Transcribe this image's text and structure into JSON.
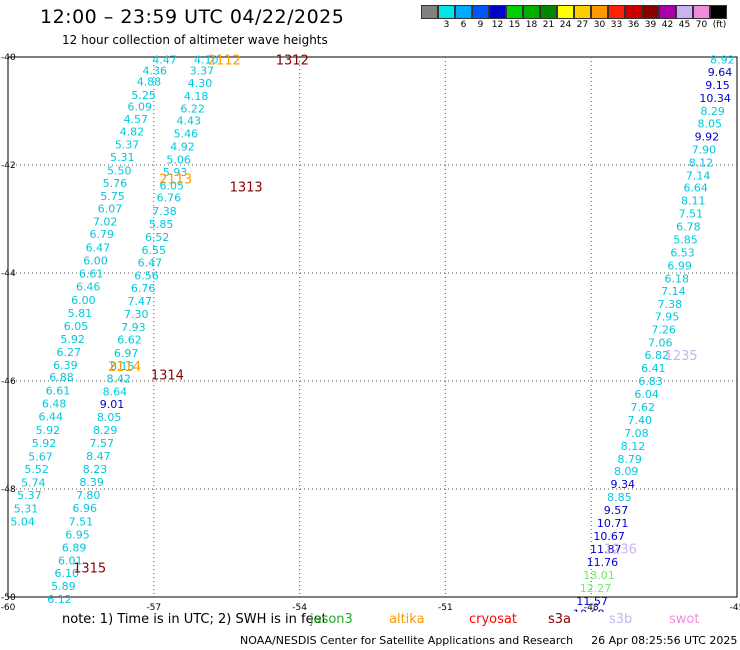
{
  "header": {
    "title": "12:00 – 23:59 UTC 04/22/2025",
    "subtitle": "12 hour collection of altimeter wave heights"
  },
  "legend": {
    "unit": "(ft)",
    "bins": [
      {
        "color": "#808080",
        "label": ""
      },
      {
        "color": "#00e6e6",
        "label": "3"
      },
      {
        "color": "#00aaff",
        "label": "6"
      },
      {
        "color": "#0055ff",
        "label": "9"
      },
      {
        "color": "#0000cc",
        "label": "12"
      },
      {
        "color": "#00d000",
        "label": "15"
      },
      {
        "color": "#00b000",
        "label": "18"
      },
      {
        "color": "#008800",
        "label": "21"
      },
      {
        "color": "#ffff00",
        "label": "24"
      },
      {
        "color": "#ffcc00",
        "label": "27"
      },
      {
        "color": "#ff9900",
        "label": "30"
      },
      {
        "color": "#ff2200",
        "label": "33"
      },
      {
        "color": "#cc0000",
        "label": "36"
      },
      {
        "color": "#880000",
        "label": "39"
      },
      {
        "color": "#aa00aa",
        "label": "42"
      },
      {
        "color": "#c8b4f0",
        "label": "45"
      },
      {
        "color": "#f08cdc",
        "label": "70"
      },
      {
        "color": "#000000",
        "label": ""
      }
    ]
  },
  "chart_data": {
    "type": "scatter",
    "xlabel": "",
    "ylabel": "",
    "xlim": [
      -60,
      -45
    ],
    "ylim": [
      -50,
      -40
    ],
    "x_ticks": [
      {
        "value": -60,
        "label": "-60"
      },
      {
        "value": -57,
        "label": "-57"
      },
      {
        "value": -54,
        "label": "-54"
      },
      {
        "value": -51,
        "label": "-51"
      },
      {
        "value": -48,
        "label": "-48"
      },
      {
        "value": -45,
        "label": "-45"
      }
    ],
    "y_ticks": [
      {
        "value": -40,
        "label": "-40"
      },
      {
        "value": -42,
        "label": "-42"
      },
      {
        "value": -44,
        "label": "-44"
      },
      {
        "value": -46,
        "label": "-46"
      },
      {
        "value": -48,
        "label": "-48"
      },
      {
        "value": -50,
        "label": "-50"
      }
    ],
    "grid": true,
    "series": [
      {
        "colors": {
          "cyan": "#00c8dc",
          "blue": "#0000cc",
          "green": "#22cc22",
          "lime": "#66ee66"
        },
        "points": [
          {
            "x": -56.78,
            "y": -40.05,
            "v": "4.47",
            "c": "cyan"
          },
          {
            "x": -56.98,
            "y": -40.25,
            "v": "4.36",
            "c": "cyan"
          },
          {
            "x": -57.1,
            "y": -40.45,
            "v": "4.88",
            "c": "cyan"
          },
          {
            "x": -57.21,
            "y": -40.7,
            "v": "5.25",
            "c": "cyan"
          },
          {
            "x": -57.29,
            "y": -40.92,
            "v": "6.09",
            "c": "cyan"
          },
          {
            "x": -57.37,
            "y": -41.15,
            "v": "4.57",
            "c": "cyan"
          },
          {
            "x": -57.45,
            "y": -41.38,
            "v": "4.82",
            "c": "cyan"
          },
          {
            "x": -57.55,
            "y": -41.62,
            "v": "5.37",
            "c": "cyan"
          },
          {
            "x": -57.65,
            "y": -41.85,
            "v": "5.31",
            "c": "cyan"
          },
          {
            "x": -57.71,
            "y": -42.1,
            "v": "5.50",
            "c": "cyan"
          },
          {
            "x": -57.8,
            "y": -42.33,
            "v": "5.76",
            "c": "cyan"
          },
          {
            "x": -57.85,
            "y": -42.57,
            "v": "5.75",
            "c": "cyan"
          },
          {
            "x": -57.9,
            "y": -42.81,
            "v": "6.07",
            "c": "cyan"
          },
          {
            "x": -58.0,
            "y": -43.05,
            "v": "7.02",
            "c": "cyan"
          },
          {
            "x": -58.07,
            "y": -43.28,
            "v": "6.79",
            "c": "cyan"
          },
          {
            "x": -58.15,
            "y": -43.53,
            "v": "6.47",
            "c": "cyan"
          },
          {
            "x": -58.2,
            "y": -43.77,
            "v": "6.00",
            "c": "cyan"
          },
          {
            "x": -58.29,
            "y": -44.01,
            "v": "6.61",
            "c": "cyan"
          },
          {
            "x": -58.35,
            "y": -44.25,
            "v": "6.46",
            "c": "cyan"
          },
          {
            "x": -58.45,
            "y": -44.5,
            "v": "6.00",
            "c": "cyan"
          },
          {
            "x": -58.52,
            "y": -44.74,
            "v": "5.81",
            "c": "cyan"
          },
          {
            "x": -58.6,
            "y": -44.98,
            "v": "6.05",
            "c": "cyan"
          },
          {
            "x": -58.67,
            "y": -45.22,
            "v": "5.92",
            "c": "cyan"
          },
          {
            "x": -58.75,
            "y": -45.46,
            "v": "6.27",
            "c": "cyan"
          },
          {
            "x": -58.82,
            "y": -45.7,
            "v": "6.39",
            "c": "cyan"
          },
          {
            "x": -58.9,
            "y": -45.93,
            "v": "6.88",
            "c": "cyan"
          },
          {
            "x": -58.97,
            "y": -46.18,
            "v": "6.61",
            "c": "cyan"
          },
          {
            "x": -59.05,
            "y": -46.42,
            "v": "6.48",
            "c": "cyan"
          },
          {
            "x": -59.12,
            "y": -46.66,
            "v": "6.44",
            "c": "cyan"
          },
          {
            "x": -59.18,
            "y": -46.91,
            "v": "5.92",
            "c": "cyan"
          },
          {
            "x": -59.26,
            "y": -47.15,
            "v": "5.92",
            "c": "cyan"
          },
          {
            "x": -59.33,
            "y": -47.4,
            "v": "5.67",
            "c": "cyan"
          },
          {
            "x": -59.41,
            "y": -47.63,
            "v": "5.52",
            "c": "cyan"
          },
          {
            "x": -59.48,
            "y": -47.88,
            "v": "5.74",
            "c": "cyan"
          },
          {
            "x": -59.56,
            "y": -48.11,
            "v": "5.37",
            "c": "cyan"
          },
          {
            "x": -59.63,
            "y": -48.36,
            "v": "5.31",
            "c": "cyan"
          },
          {
            "x": -59.7,
            "y": -48.6,
            "v": "5.04",
            "c": "cyan"
          },
          {
            "x": -55.92,
            "y": -40.05,
            "v": "4.10",
            "c": "cyan"
          },
          {
            "x": -56.01,
            "y": -40.25,
            "v": "3.37",
            "c": "cyan"
          },
          {
            "x": -56.05,
            "y": -40.48,
            "v": "4.30",
            "c": "cyan"
          },
          {
            "x": -56.13,
            "y": -40.72,
            "v": "4.18",
            "c": "cyan"
          },
          {
            "x": -56.2,
            "y": -40.95,
            "v": "6.22",
            "c": "cyan"
          },
          {
            "x": -56.28,
            "y": -41.18,
            "v": "4.43",
            "c": "cyan"
          },
          {
            "x": -56.34,
            "y": -41.42,
            "v": "5.46",
            "c": "cyan"
          },
          {
            "x": -56.41,
            "y": -41.66,
            "v": "4.92",
            "c": "cyan"
          },
          {
            "x": -56.49,
            "y": -41.9,
            "v": "5.06",
            "c": "cyan"
          },
          {
            "x": -56.56,
            "y": -42.13,
            "v": "5.93",
            "c": "cyan"
          },
          {
            "x": -56.63,
            "y": -42.38,
            "v": "6.05",
            "c": "cyan"
          },
          {
            "x": -56.69,
            "y": -42.6,
            "v": "6.76",
            "c": "cyan"
          },
          {
            "x": -56.78,
            "y": -42.85,
            "v": "7.38",
            "c": "cyan"
          },
          {
            "x": -56.85,
            "y": -43.09,
            "v": "5.85",
            "c": "cyan"
          },
          {
            "x": -56.93,
            "y": -43.33,
            "v": "6.52",
            "c": "cyan"
          },
          {
            "x": -57.0,
            "y": -43.57,
            "v": "6.55",
            "c": "cyan"
          },
          {
            "x": -57.08,
            "y": -43.81,
            "v": "6.47",
            "c": "cyan"
          },
          {
            "x": -57.15,
            "y": -44.05,
            "v": "6.56",
            "c": "cyan"
          },
          {
            "x": -57.22,
            "y": -44.28,
            "v": "6.76",
            "c": "cyan"
          },
          {
            "x": -57.29,
            "y": -44.52,
            "v": "7.47",
            "c": "cyan"
          },
          {
            "x": -57.36,
            "y": -44.76,
            "v": "7.30",
            "c": "cyan"
          },
          {
            "x": -57.42,
            "y": -45.0,
            "v": "7.93",
            "c": "cyan"
          },
          {
            "x": -57.5,
            "y": -45.23,
            "v": "6.62",
            "c": "cyan"
          },
          {
            "x": -57.57,
            "y": -45.48,
            "v": "6.97",
            "c": "cyan"
          },
          {
            "x": -57.65,
            "y": -45.72,
            "v": "8.15",
            "c": "cyan"
          },
          {
            "x": -57.72,
            "y": -45.95,
            "v": "8.42",
            "c": "cyan"
          },
          {
            "x": -57.8,
            "y": -46.19,
            "v": "8.64",
            "c": "cyan"
          },
          {
            "x": -57.86,
            "y": -46.43,
            "v": "9.01",
            "c": "blue"
          },
          {
            "x": -57.92,
            "y": -46.67,
            "v": "8.05",
            "c": "cyan"
          },
          {
            "x": -58.0,
            "y": -46.91,
            "v": "8.29",
            "c": "cyan"
          },
          {
            "x": -58.07,
            "y": -47.15,
            "v": "7.57",
            "c": "cyan"
          },
          {
            "x": -58.14,
            "y": -47.39,
            "v": "8.47",
            "c": "cyan"
          },
          {
            "x": -58.21,
            "y": -47.63,
            "v": "8.23",
            "c": "cyan"
          },
          {
            "x": -58.28,
            "y": -47.87,
            "v": "8.39",
            "c": "cyan"
          },
          {
            "x": -58.35,
            "y": -48.11,
            "v": "7.80",
            "c": "cyan"
          },
          {
            "x": -58.42,
            "y": -48.35,
            "v": "6.96",
            "c": "cyan"
          },
          {
            "x": -58.5,
            "y": -48.6,
            "v": "7.51",
            "c": "cyan"
          },
          {
            "x": -58.57,
            "y": -48.84,
            "v": "6.95",
            "c": "cyan"
          },
          {
            "x": -58.64,
            "y": -49.08,
            "v": "6.89",
            "c": "cyan"
          },
          {
            "x": -58.72,
            "y": -49.32,
            "v": "6.01",
            "c": "cyan"
          },
          {
            "x": -58.79,
            "y": -49.56,
            "v": "6.10",
            "c": "cyan"
          },
          {
            "x": -58.86,
            "y": -49.8,
            "v": "5.89",
            "c": "cyan"
          },
          {
            "x": -58.94,
            "y": -50.04,
            "v": "6.12",
            "c": "cyan"
          },
          {
            "x": -45.3,
            "y": -40.05,
            "v": "8.92",
            "c": "cyan"
          },
          {
            "x": -45.35,
            "y": -40.28,
            "v": "9.64",
            "c": "blue"
          },
          {
            "x": -45.4,
            "y": -40.52,
            "v": "9.15",
            "c": "blue"
          },
          {
            "x": -45.45,
            "y": -40.76,
            "v": "10.34",
            "c": "blue"
          },
          {
            "x": -45.5,
            "y": -41.0,
            "v": "8.29",
            "c": "cyan"
          },
          {
            "x": -45.56,
            "y": -41.23,
            "v": "8.05",
            "c": "cyan"
          },
          {
            "x": -45.62,
            "y": -41.47,
            "v": "9.92",
            "c": "blue"
          },
          {
            "x": -45.68,
            "y": -41.71,
            "v": "7.90",
            "c": "cyan"
          },
          {
            "x": -45.74,
            "y": -41.95,
            "v": "8.12",
            "c": "cyan"
          },
          {
            "x": -45.8,
            "y": -42.19,
            "v": "7.14",
            "c": "cyan"
          },
          {
            "x": -45.85,
            "y": -42.42,
            "v": "6.64",
            "c": "cyan"
          },
          {
            "x": -45.9,
            "y": -42.66,
            "v": "8.11",
            "c": "cyan"
          },
          {
            "x": -45.95,
            "y": -42.9,
            "v": "7.51",
            "c": "cyan"
          },
          {
            "x": -46.0,
            "y": -43.14,
            "v": "6.78",
            "c": "cyan"
          },
          {
            "x": -46.06,
            "y": -43.38,
            "v": "5.85",
            "c": "cyan"
          },
          {
            "x": -46.12,
            "y": -43.62,
            "v": "6.53",
            "c": "cyan"
          },
          {
            "x": -46.18,
            "y": -43.86,
            "v": "6.99",
            "c": "cyan"
          },
          {
            "x": -46.24,
            "y": -44.1,
            "v": "6.18",
            "c": "cyan"
          },
          {
            "x": -46.31,
            "y": -44.33,
            "v": "7.14",
            "c": "cyan"
          },
          {
            "x": -46.38,
            "y": -44.57,
            "v": "7.38",
            "c": "cyan"
          },
          {
            "x": -46.44,
            "y": -44.81,
            "v": "7.95",
            "c": "cyan"
          },
          {
            "x": -46.51,
            "y": -45.05,
            "v": "7.26",
            "c": "cyan"
          },
          {
            "x": -46.58,
            "y": -45.29,
            "v": "7.06",
            "c": "cyan"
          },
          {
            "x": -46.65,
            "y": -45.52,
            "v": "6.82",
            "c": "cyan"
          },
          {
            "x": -46.72,
            "y": -45.76,
            "v": "6.41",
            "c": "cyan"
          },
          {
            "x": -46.78,
            "y": -46.0,
            "v": "6.83",
            "c": "cyan"
          },
          {
            "x": -46.86,
            "y": -46.24,
            "v": "6.04",
            "c": "cyan"
          },
          {
            "x": -46.94,
            "y": -46.48,
            "v": "7.62",
            "c": "cyan"
          },
          {
            "x": -47.0,
            "y": -46.72,
            "v": "7.40",
            "c": "cyan"
          },
          {
            "x": -47.07,
            "y": -46.96,
            "v": "7.08",
            "c": "cyan"
          },
          {
            "x": -47.14,
            "y": -47.2,
            "v": "8.12",
            "c": "cyan"
          },
          {
            "x": -47.21,
            "y": -47.44,
            "v": "8.79",
            "c": "cyan"
          },
          {
            "x": -47.28,
            "y": -47.67,
            "v": "8.09",
            "c": "cyan"
          },
          {
            "x": -47.35,
            "y": -47.91,
            "v": "9.34",
            "c": "blue"
          },
          {
            "x": -47.42,
            "y": -48.15,
            "v": "8.85",
            "c": "cyan"
          },
          {
            "x": -47.49,
            "y": -48.39,
            "v": "9.57",
            "c": "blue"
          },
          {
            "x": -47.56,
            "y": -48.63,
            "v": "10.71",
            "c": "blue"
          },
          {
            "x": -47.63,
            "y": -48.87,
            "v": "10.67",
            "c": "blue"
          },
          {
            "x": -47.7,
            "y": -49.11,
            "v": "11.87",
            "c": "blue"
          },
          {
            "x": -47.77,
            "y": -49.35,
            "v": "11.76",
            "c": "blue"
          },
          {
            "x": -47.84,
            "y": -49.59,
            "v": "13.01",
            "c": "lime"
          },
          {
            "x": -47.91,
            "y": -49.83,
            "v": "12.27",
            "c": "lime"
          },
          {
            "x": -47.98,
            "y": -50.07,
            "v": "11.57",
            "c": "blue"
          },
          {
            "x": -48.05,
            "y": -50.31,
            "v": "10.68",
            "c": "blue"
          }
        ]
      }
    ],
    "time_labels": [
      {
        "x": -55.55,
        "y": -40.05,
        "v": "2112",
        "color": "#ff9900"
      },
      {
        "x": -54.15,
        "y": -40.05,
        "v": "1312",
        "color": "#880000"
      },
      {
        "x": -56.55,
        "y": -42.25,
        "v": "2113",
        "color": "#ff9900"
      },
      {
        "x": -55.1,
        "y": -42.4,
        "v": "1313",
        "color": "#880000"
      },
      {
        "x": -57.6,
        "y": -45.72,
        "v": "2114",
        "color": "#ff9900"
      },
      {
        "x": -56.72,
        "y": -45.88,
        "v": "1314",
        "color": "#880000"
      },
      {
        "x": -58.32,
        "y": -49.45,
        "v": "1315",
        "color": "#880000"
      },
      {
        "x": -44.55,
        "y": -42.07,
        "v": "1235",
        "color": "#c8b4f0"
      },
      {
        "x": -46.15,
        "y": -45.52,
        "v": "1235",
        "color": "#c8b4f0"
      },
      {
        "x": -47.4,
        "y": -49.1,
        "v": "1236",
        "color": "#c8b4f0"
      }
    ]
  },
  "note": {
    "text": "note: 1) Time is in UTC; 2) SWH is in feet",
    "missions": [
      {
        "name": "jason3",
        "color": "#22aa22"
      },
      {
        "name": "altika",
        "color": "#ff9900"
      },
      {
        "name": "cryosat",
        "color": "#ff0000"
      },
      {
        "name": "s3a",
        "color": "#880000"
      },
      {
        "name": "s3b",
        "color": "#c8b4f0"
      },
      {
        "name": "swot",
        "color": "#f08cdc"
      }
    ]
  },
  "footer": {
    "credit": "NOAA/NESDIS Center for Satellite Applications and Research",
    "timestamp": "26 Apr 08:25:56 UTC 2025"
  }
}
